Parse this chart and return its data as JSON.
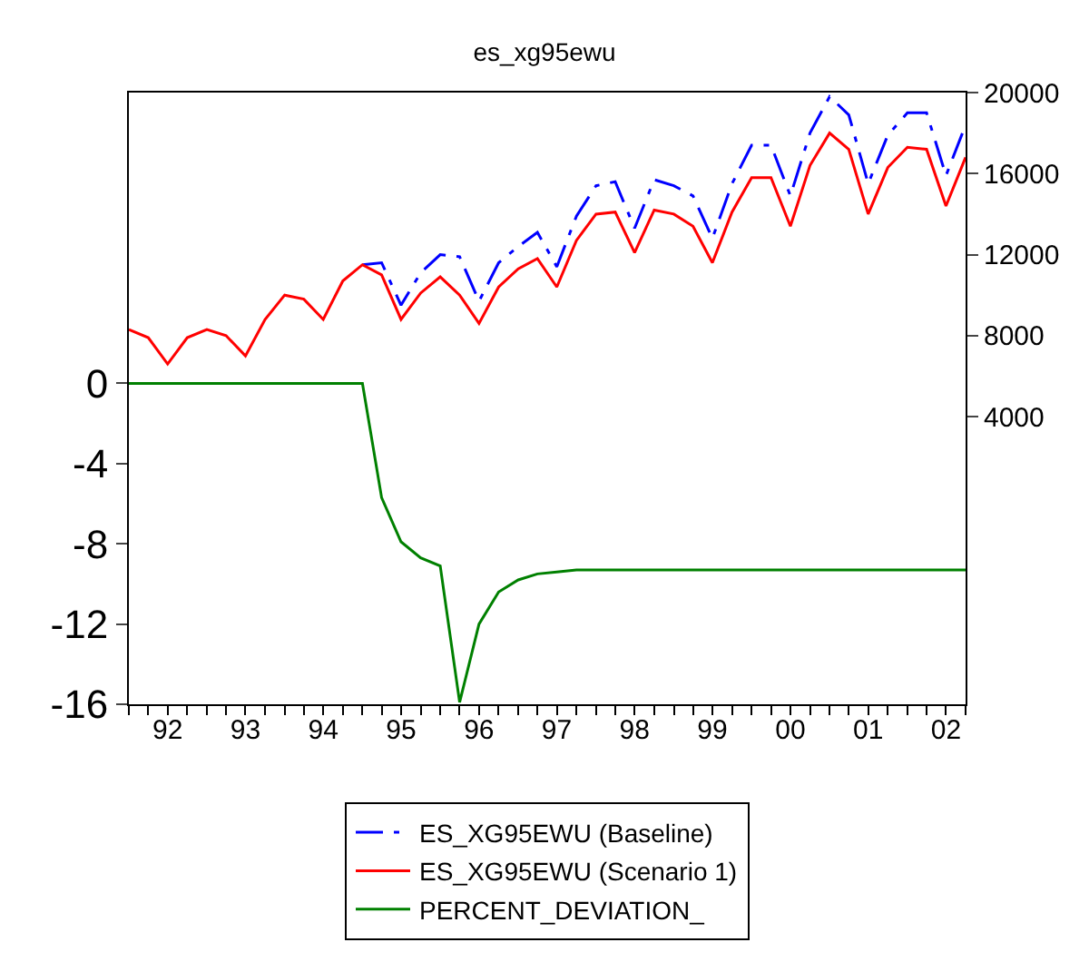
{
  "chart_data": {
    "type": "line",
    "title": "es_xg95ewu",
    "x": [
      "1992-01",
      "1992-04",
      "1992-07",
      "1992-10",
      "1993-01",
      "1993-04",
      "1993-07",
      "1993-10",
      "1994-01",
      "1994-04",
      "1994-07",
      "1994-10",
      "1995-01",
      "1995-04",
      "1995-07",
      "1995-10",
      "1996-01",
      "1996-04",
      "1996-07",
      "1996-10",
      "1997-01",
      "1997-04",
      "1997-07",
      "1997-10",
      "1998-01",
      "1998-04",
      "1998-07",
      "1998-10",
      "1999-01",
      "1999-04",
      "1999-07",
      "1999-10",
      "2000-01",
      "2000-04",
      "2000-07",
      "2000-10",
      "2001-01",
      "2001-04",
      "2001-07",
      "2001-10",
      "2002-01",
      "2002-04",
      "2002-07",
      "2002-10"
    ],
    "series": [
      {
        "name": "ES_XG95EWU (Baseline)",
        "color": "#0000ff",
        "axis": "y2",
        "line_style": "dashed",
        "values": [
          null,
          null,
          null,
          null,
          null,
          null,
          null,
          null,
          null,
          null,
          null,
          null,
          11500,
          11600,
          9500,
          11100,
          12000,
          11900,
          9700,
          11600,
          12400,
          13100,
          11400,
          13900,
          15400,
          15600,
          13300,
          15700,
          15400,
          14900,
          12800,
          15500,
          17400,
          17400,
          14900,
          18000,
          19800,
          18900,
          15500,
          17900,
          19000,
          19000,
          15900,
          18400
        ]
      },
      {
        "name": "ES_XG95EWU (Scenario 1)",
        "color": "#ff0000",
        "axis": "y2",
        "line_style": "solid",
        "values": [
          8300,
          7900,
          6600,
          7900,
          8300,
          8000,
          7000,
          8800,
          10000,
          9800,
          8800,
          10700,
          11500,
          11000,
          8800,
          10100,
          10900,
          10000,
          8600,
          10400,
          11300,
          11800,
          10400,
          12700,
          14000,
          14100,
          12100,
          14200,
          14000,
          13400,
          11600,
          14100,
          15800,
          15800,
          13400,
          16400,
          18000,
          17200,
          14000,
          16300,
          17300,
          17200,
          14400,
          16800
        ]
      },
      {
        "name": "PERCENT_DEVIATION_",
        "color": "#008000",
        "axis": "y",
        "line_style": "solid",
        "values": [
          0,
          0,
          0,
          0,
          0,
          0,
          0,
          0,
          0,
          0,
          0,
          0,
          0,
          -5.7,
          -7.9,
          -8.7,
          -9.1,
          -15.9,
          -12.0,
          -10.4,
          -9.8,
          -9.5,
          -9.4,
          -9.3,
          -9.3,
          -9.3,
          -9.3,
          -9.3,
          -9.3,
          -9.3,
          -9.3,
          -9.3,
          -9.3,
          -9.3,
          -9.3,
          -9.3,
          -9.3,
          -9.3,
          -9.3,
          -9.3,
          -9.3,
          -9.3,
          -9.3,
          -9.3
        ]
      }
    ],
    "xlim": [
      "1992-01",
      "2002-10"
    ],
    "xticks": [
      {
        "value": "1992-07",
        "label": "92"
      },
      {
        "value": "1993-07",
        "label": "93"
      },
      {
        "value": "1994-07",
        "label": "94"
      },
      {
        "value": "1995-07",
        "label": "95"
      },
      {
        "value": "1996-07",
        "label": "96"
      },
      {
        "value": "1997-07",
        "label": "97"
      },
      {
        "value": "1998-07",
        "label": "98"
      },
      {
        "value": "1999-07",
        "label": "99"
      },
      {
        "value": "2000-07",
        "label": "00"
      },
      {
        "value": "2001-07",
        "label": "01"
      },
      {
        "value": "2002-07",
        "label": "02"
      }
    ],
    "ylim": [
      -16,
      14.5
    ],
    "yticks": [
      0,
      -4,
      -8,
      -12,
      -16
    ],
    "y2lim": [
      -10200,
      20000
    ],
    "y2ticks": [
      4000,
      8000,
      12000,
      16000,
      20000
    ],
    "legend": "bottom",
    "marker": "none"
  }
}
